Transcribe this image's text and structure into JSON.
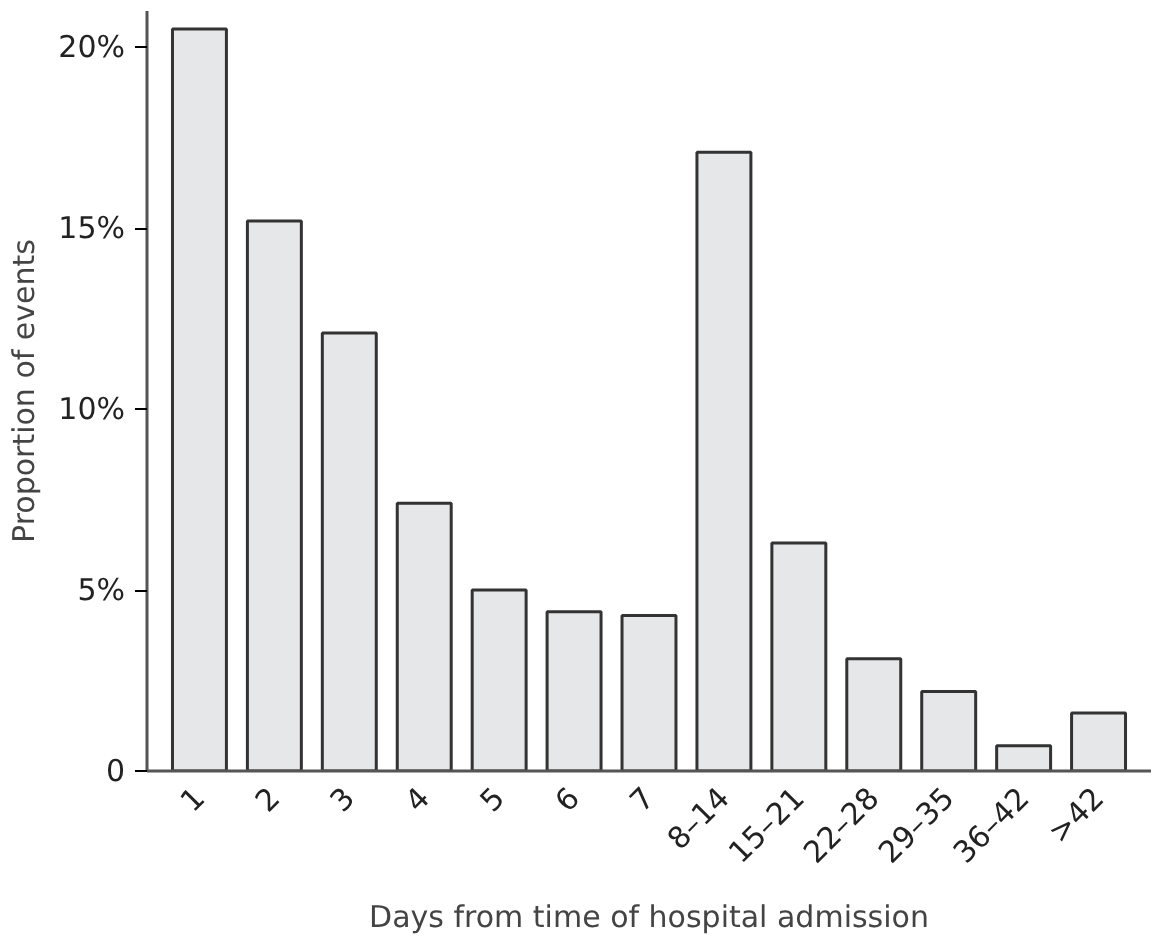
{
  "chart_data": {
    "type": "bar",
    "xlabel": "Days from time of hospital admission",
    "ylabel": "Proportion of events",
    "categories": [
      "1",
      "2",
      "3",
      "4",
      "5",
      "6",
      "7",
      "8–14",
      "15–21",
      "22–28",
      "29–35",
      "36–42",
      ">42"
    ],
    "values": [
      20.5,
      15.2,
      12.1,
      7.4,
      5.0,
      4.4,
      4.3,
      17.1,
      6.3,
      3.1,
      2.2,
      0.7,
      1.6
    ],
    "color": "#e6e7e8",
    "ylim": [
      0,
      21
    ],
    "yticks": [
      {
        "value": 0,
        "label": "0"
      },
      {
        "value": 5,
        "label": "5%"
      },
      {
        "value": 10,
        "label": "10%"
      },
      {
        "value": 15,
        "label": "15%"
      },
      {
        "value": 20,
        "label": "20%"
      }
    ],
    "grid": false
  }
}
